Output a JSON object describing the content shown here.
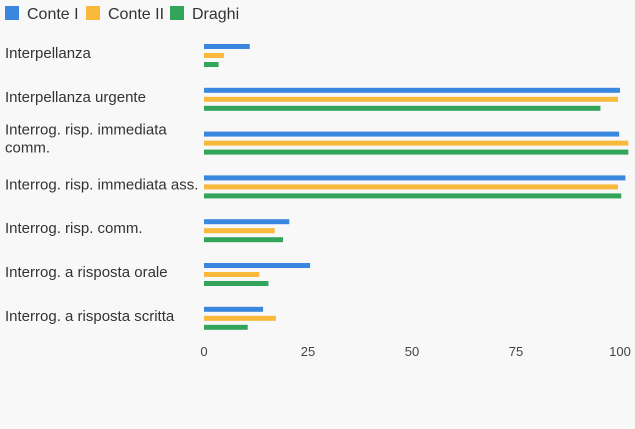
{
  "chart_data": {
    "type": "bar",
    "orientation": "horizontal",
    "categories": [
      "Interpellanza",
      "Interpellanza urgente",
      "Interrog. risp. immediata comm.",
      "Interrog. risp. immediata ass.",
      "Interrog. risp. comm.",
      "Interrog. a risposta orale",
      "Interrog. a risposta scritta"
    ],
    "series": [
      {
        "name": "Conte I",
        "color": "#3a87e0",
        "values": [
          11,
          100,
          99.8,
          101.3,
          20.5,
          25.5,
          14.2
        ]
      },
      {
        "name": "Conte II",
        "color": "#f9b93a",
        "values": [
          4.8,
          99.5,
          102,
          99.5,
          17,
          13.3,
          17.3
        ]
      },
      {
        "name": "Draghi",
        "color": "#32a55b",
        "values": [
          3.5,
          95.3,
          102,
          100.3,
          19,
          15.5,
          10.5
        ]
      }
    ],
    "xlim": [
      0,
      100
    ],
    "xticks": [
      0,
      25,
      50,
      75,
      100
    ],
    "legend_position": "top-left",
    "grid": false
  }
}
